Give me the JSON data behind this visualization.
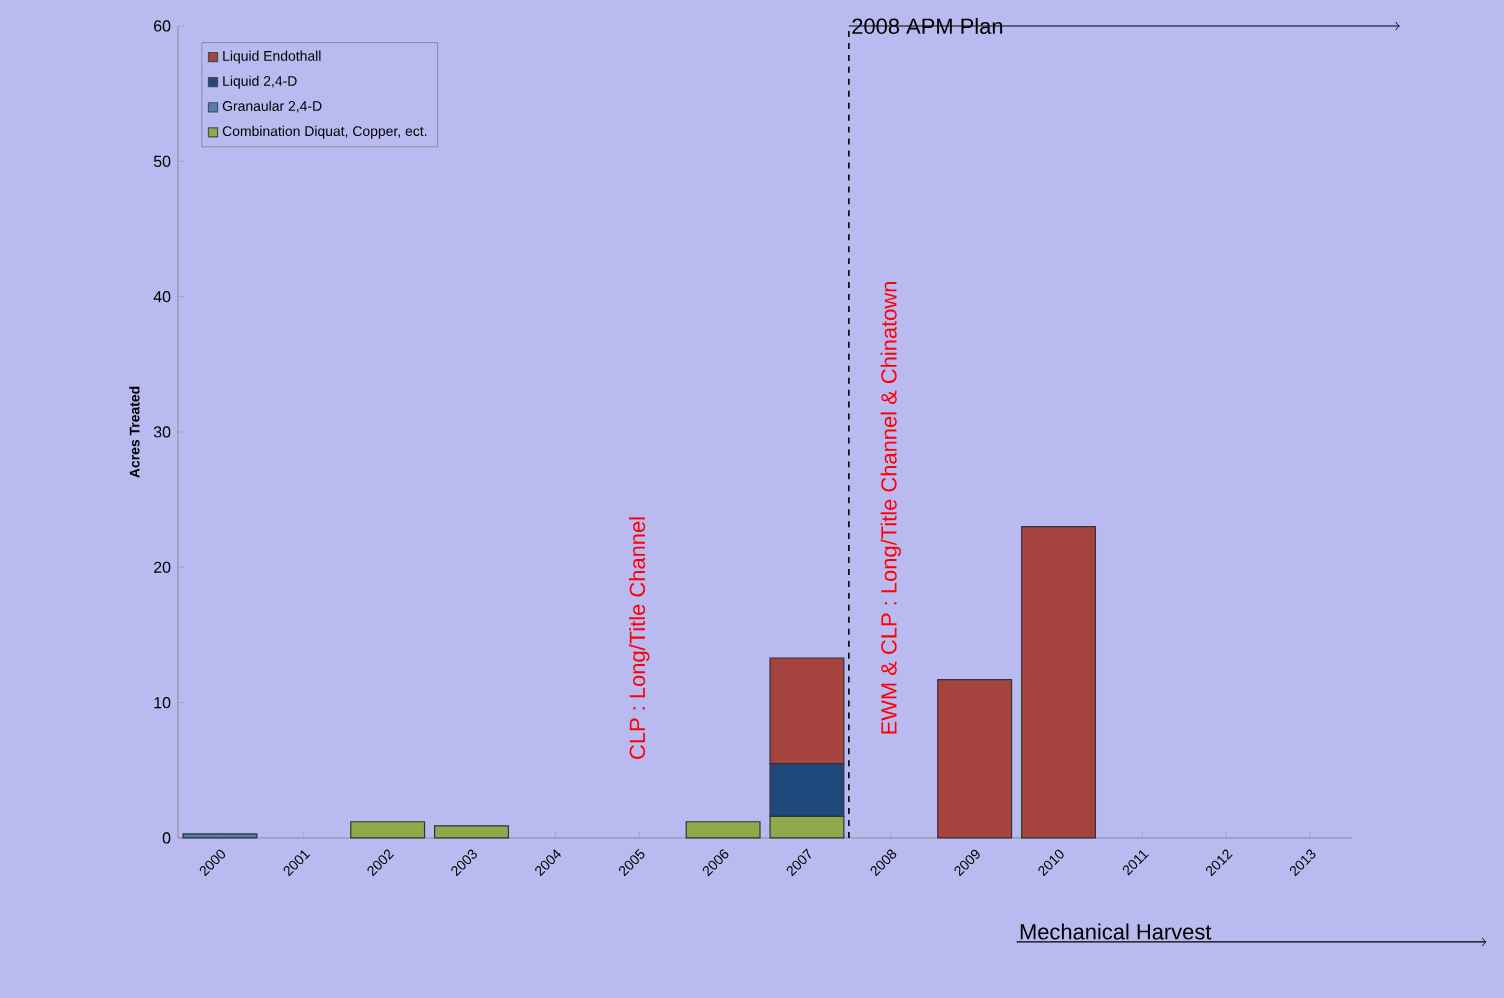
{
  "chart_data": {
    "type": "bar",
    "stacked": true,
    "ylabel": "Acres Treated",
    "categories": [
      "2000",
      "2001",
      "2002",
      "2003",
      "2004",
      "2005",
      "2006",
      "2007",
      "2008",
      "2009",
      "2010",
      "2011",
      "2012",
      "2013"
    ],
    "series": [
      {
        "name": "Combination Diquat, Copper, ect.",
        "color": "#8faa4c",
        "values": [
          null,
          null,
          1.2,
          0.9,
          null,
          null,
          1.2,
          1.6,
          null,
          null,
          null,
          null,
          null,
          null
        ]
      },
      {
        "name": "Granaular 2,4-D",
        "color": "#4f81bd",
        "values": [
          0.3,
          null,
          null,
          null,
          null,
          null,
          null,
          null,
          null,
          null,
          null,
          null,
          null,
          null
        ]
      },
      {
        "name": "Liquid 2,4-D",
        "color": "#1f497d",
        "values": [
          null,
          null,
          null,
          null,
          null,
          null,
          null,
          3.9,
          null,
          null,
          null,
          null,
          null,
          null
        ]
      },
      {
        "name": "Liquid Endothall",
        "color": "#a5443f",
        "values": [
          null,
          null,
          null,
          null,
          null,
          null,
          null,
          7.8,
          null,
          11.7,
          23.0,
          null,
          null,
          null
        ]
      }
    ],
    "ylim": [
      0,
      60
    ],
    "yticks": [
      0,
      10,
      20,
      30,
      40,
      50,
      60
    ],
    "legend": "top left",
    "annotations": [
      "CLP : Long/Title Channel",
      "EWM & CLP : Long/Title Channel & Chinatown",
      "2008 APM Plan",
      "Mechanical Harvest"
    ]
  }
}
